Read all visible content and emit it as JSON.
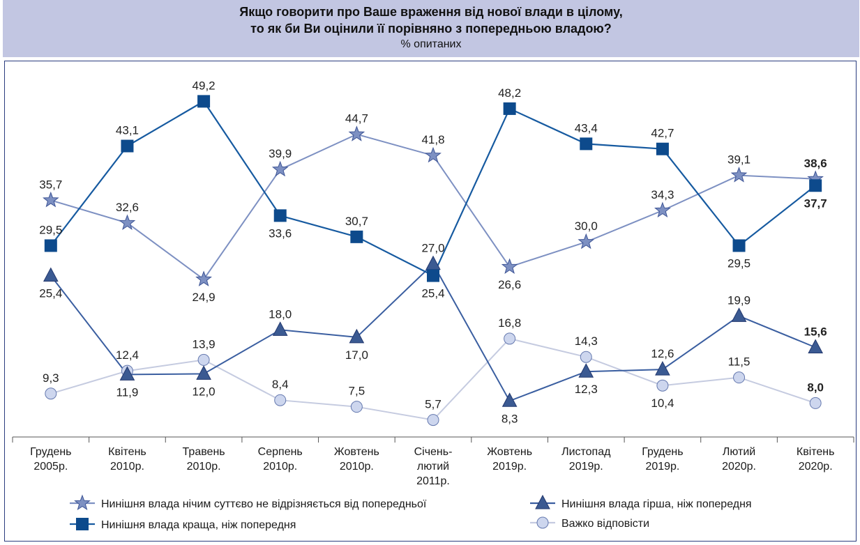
{
  "header": {
    "title_line1": "Якщо говорити про Ваше враження від нової влади в цілому,",
    "title_line2": "то як би Ви оцінили її порівняно з попередньою владою?",
    "subtitle": "% опитаних"
  },
  "colors": {
    "header_bg": "#c2c6e2",
    "frame": "#2a3c7e",
    "dark_blue": "#0d4a8c",
    "mid_blue": "#3b5a92",
    "light_purple": "#7d90c2",
    "light_gray_blue": "#c5cbe0",
    "circle_fill": "#cdd6ee"
  },
  "chart_data": {
    "type": "line",
    "categories": [
      [
        "Грудень",
        "2005р."
      ],
      [
        "Квітень",
        "2010р."
      ],
      [
        "Травень",
        "2010р."
      ],
      [
        "Серпень",
        "2010р."
      ],
      [
        "Жовтень",
        "2010р."
      ],
      [
        "Січень-",
        "лютий",
        "2011р."
      ],
      [
        "Жовтень",
        "2019р."
      ],
      [
        "Листопад",
        "2019р."
      ],
      [
        "Грудень",
        "2019р."
      ],
      [
        "Лютий",
        "2020р."
      ],
      [
        "Квітень",
        "2020р."
      ]
    ],
    "series": [
      {
        "name": "Нинішня влада нічим суттєво не відрізняється від попередньої",
        "marker": "star",
        "values": [
          35.7,
          32.6,
          24.9,
          39.9,
          44.7,
          41.8,
          26.6,
          30.0,
          34.3,
          39.1,
          38.6
        ],
        "labels": [
          "35,7",
          "32,6",
          "24,9",
          "39,9",
          "44,7",
          "41,8",
          "26,6",
          "30,0",
          "34,3",
          "39,1",
          "38,6"
        ]
      },
      {
        "name": "Нинішня влада краща, ніж попередня",
        "marker": "square",
        "values": [
          29.5,
          43.1,
          49.2,
          33.6,
          30.7,
          25.4,
          48.2,
          43.4,
          42.7,
          29.5,
          37.7
        ],
        "labels": [
          "29,5",
          "43,1",
          "49,2",
          "33,6",
          "30,7",
          "25,4",
          "48,2",
          "43,4",
          "42,7",
          "29,5",
          "37,7"
        ]
      },
      {
        "name": "Нинішня влада гірша, ніж попередня",
        "marker": "triangle",
        "values": [
          25.4,
          11.9,
          12.0,
          18.0,
          17.0,
          27.0,
          8.3,
          12.3,
          12.6,
          19.9,
          15.6
        ],
        "labels": [
          "25,4",
          "11,9",
          "12,0",
          "18,0",
          "17,0",
          "27,0",
          "8,3",
          "12,3",
          "12,6",
          "19,9",
          "15,6"
        ]
      },
      {
        "name": "Важко відповісти",
        "marker": "circle",
        "values": [
          9.3,
          12.4,
          13.9,
          8.4,
          7.5,
          5.7,
          16.8,
          14.3,
          10.4,
          11.5,
          8.0
        ],
        "labels": [
          "9,3",
          "12,4",
          "13,9",
          "8,4",
          "7,5",
          "5,7",
          "16,8",
          "14,3",
          "10,4",
          "11,5",
          "8,0"
        ]
      }
    ],
    "last_point_labels_bold": true,
    "legend_position": "bottom",
    "grid": false
  }
}
